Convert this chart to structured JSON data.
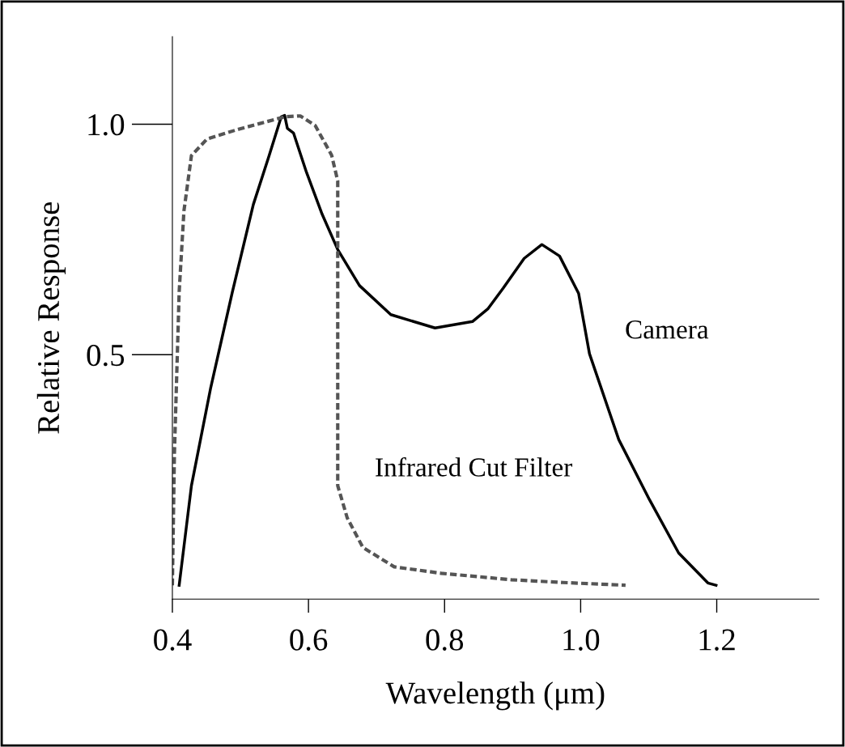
{
  "chart_data": {
    "type": "line",
    "xlabel": "Wavelength (μm)",
    "ylabel": "Relative Response",
    "xlim": [
      0.4,
      1.35
    ],
    "ylim": [
      -0.03,
      1.19
    ],
    "xticks": [
      0.4,
      0.6,
      0.8,
      {
        "value": 1.0,
        "label": "1.0"
      },
      1.2
    ],
    "yticks": [
      0.5,
      {
        "value": 1.0,
        "label": "1.0"
      }
    ],
    "grid": false,
    "legend": false,
    "marker": "none",
    "series": [
      {
        "name": "Camera",
        "color": "#000000",
        "line_style": "solid",
        "x": [
          0.41,
          0.428,
          0.456,
          0.488,
          0.519,
          0.542,
          0.56,
          0.565,
          0.569,
          0.578,
          0.597,
          0.62,
          0.643,
          0.675,
          0.721,
          0.786,
          0.841,
          0.864,
          0.886,
          0.917,
          0.943,
          0.969,
          0.997,
          1.013,
          1.056,
          1.101,
          1.144,
          1.187,
          1.199
        ],
        "values": [
          0.0,
          0.216,
          0.426,
          0.635,
          0.826,
          0.931,
          1.016,
          1.019,
          0.991,
          0.981,
          0.896,
          0.805,
          0.728,
          0.65,
          0.587,
          0.558,
          0.572,
          0.6,
          0.644,
          0.709,
          0.739,
          0.714,
          0.633,
          0.502,
          0.316,
          0.186,
          0.07,
          0.005,
          0.0
        ]
      },
      {
        "name": "Infrared Cut Filter",
        "color": "#555555",
        "line_style": "dashed",
        "x": [
          0.4,
          0.403,
          0.41,
          0.417,
          0.428,
          0.451,
          0.497,
          0.565,
          0.588,
          0.61,
          0.634,
          0.643,
          0.643,
          0.643,
          0.657,
          0.68,
          0.726,
          0.795,
          0.898,
          0.974,
          1.066
        ],
        "values": [
          0.0,
          0.286,
          0.637,
          0.812,
          0.932,
          0.968,
          0.989,
          1.016,
          1.018,
          0.997,
          0.933,
          0.877,
          0.565,
          0.216,
          0.146,
          0.082,
          0.04,
          0.026,
          0.012,
          0.006,
          0.0
        ]
      }
    ]
  }
}
